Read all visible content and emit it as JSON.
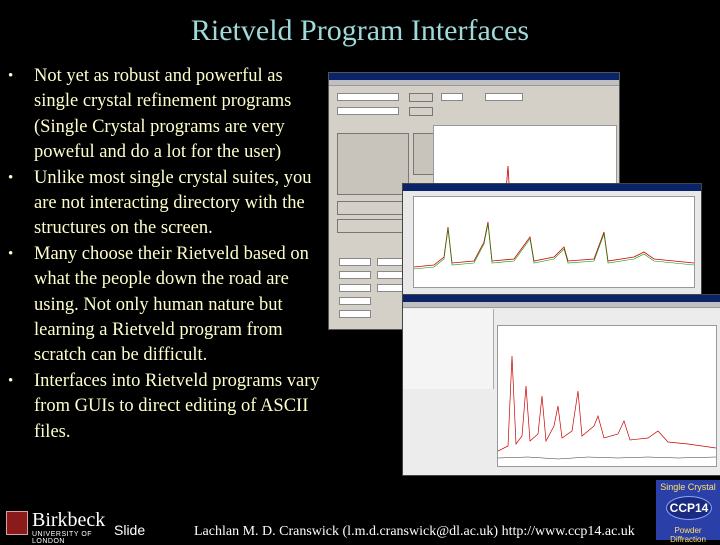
{
  "slide": {
    "title": "Rietveld Program Interfaces",
    "bullets": [
      {
        "text": "Not yet as robust and powerful as single crystal refinement programs (Single Crystal programs are very poweful and do a lot for the user)"
      },
      {
        "text": "Unlike most single crystal suites, you are not interacting directory with the structures on the screen."
      },
      {
        "text": "Many choose their Rietveld based on what the people down the road are using.  Not only human nature but learning a Rietveld program from scratch can be difficult."
      },
      {
        "text": "Interfaces into Rietveld programs vary from GUIs to direct editing of ASCII files."
      }
    ],
    "bullet_glyph": "•"
  },
  "footer": {
    "logo_name": "Birkbeck",
    "logo_sub": "UNIVERSITY OF LONDON",
    "slide_label": "Slide",
    "credit": "Lachlan M. D. Cranswick (l.m.d.cranswick@dl.ac.uk) http://www.ccp14.ac.uk"
  },
  "ccp14_logo": {
    "top_text": "Single Crystal",
    "center_text": "CCP14",
    "bottom_text": "Powder Diffraction"
  },
  "colors": {
    "background": "#000000",
    "title": "#9fd9d9",
    "bullet_text": "#ffffcc"
  }
}
